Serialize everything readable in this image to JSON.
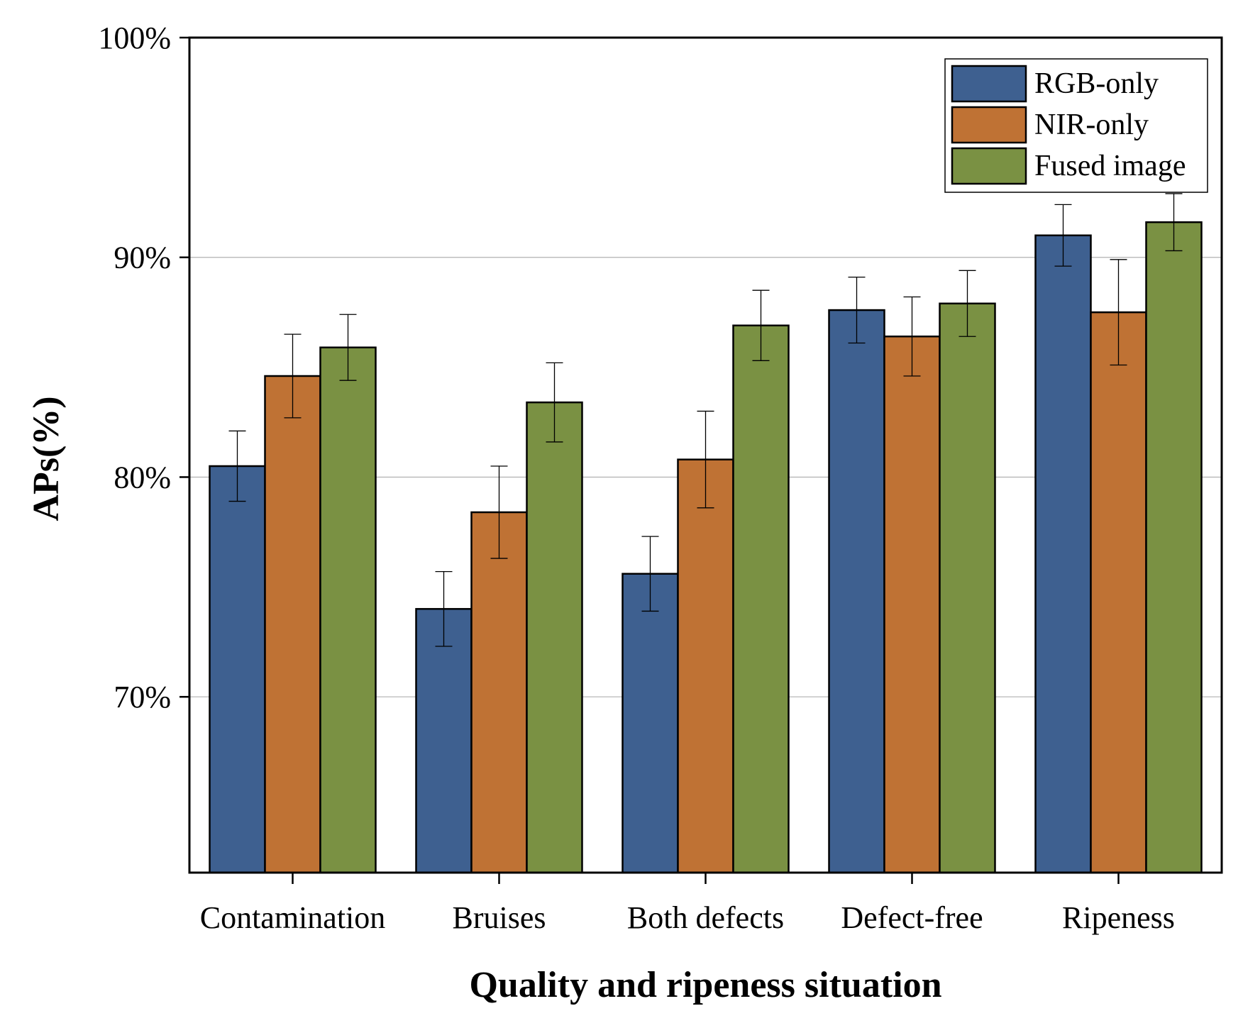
{
  "chart_data": {
    "type": "bar",
    "title": "",
    "xlabel": "Quality and ripeness situation",
    "ylabel": "APs(%)",
    "ylim": [
      62,
      100
    ],
    "yticks": [
      70,
      80,
      90,
      100
    ],
    "ytick_labels": [
      "70%",
      "80%",
      "90%",
      "100%"
    ],
    "grid": true,
    "legend_position": "top-right",
    "categories": [
      "Contamination",
      "Bruises",
      "Both defects",
      "Defect-free",
      "Ripeness"
    ],
    "series": [
      {
        "name": "RGB-only",
        "color": "#3e6090",
        "values": [
          80.5,
          74.0,
          75.6,
          87.6,
          91.0
        ],
        "errors": [
          1.6,
          1.7,
          1.7,
          1.5,
          1.4
        ]
      },
      {
        "name": "NIR-only",
        "color": "#bf7234",
        "values": [
          84.6,
          78.4,
          80.8,
          86.4,
          87.5
        ],
        "errors": [
          1.9,
          2.1,
          2.2,
          1.8,
          2.4
        ]
      },
      {
        "name": "Fused image",
        "color": "#7a9143",
        "values": [
          85.9,
          83.4,
          86.9,
          87.9,
          91.6
        ],
        "errors": [
          1.5,
          1.8,
          1.6,
          1.5,
          1.3
        ]
      }
    ]
  }
}
